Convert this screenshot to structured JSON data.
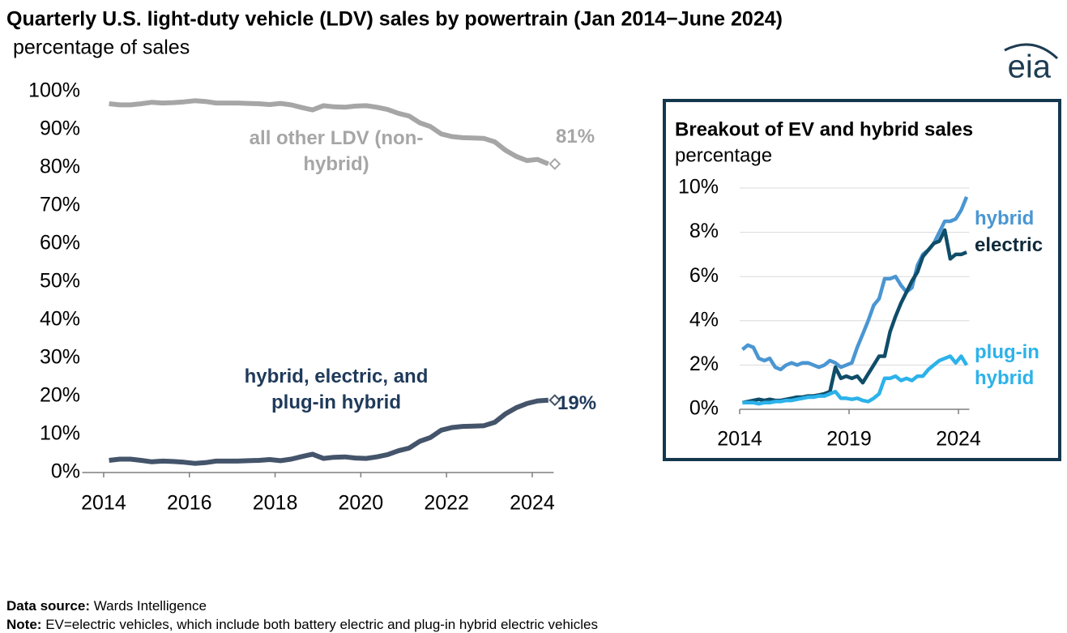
{
  "chart_data": [
    {
      "type": "line",
      "title": "Quarterly U.S. light-duty vehicle (LDV) sales by powertrain (Jan 2014−June 2024)",
      "subtitle": "percentage of sales",
      "x": [
        2014.125,
        2014.375,
        2014.625,
        2014.875,
        2015.125,
        2015.375,
        2015.625,
        2015.875,
        2016.125,
        2016.375,
        2016.625,
        2016.875,
        2017.125,
        2017.375,
        2017.625,
        2017.875,
        2018.125,
        2018.375,
        2018.625,
        2018.875,
        2019.125,
        2019.375,
        2019.625,
        2019.875,
        2020.125,
        2020.375,
        2020.625,
        2020.875,
        2021.125,
        2021.375,
        2021.625,
        2021.875,
        2022.125,
        2022.375,
        2022.625,
        2022.875,
        2023.125,
        2023.375,
        2023.625,
        2023.875,
        2024.125,
        2024.375
      ],
      "xlim": [
        2013.5,
        2024.5
      ],
      "xticks": [
        2014,
        2016,
        2018,
        2020,
        2022,
        2024
      ],
      "ylim": [
        0,
        100
      ],
      "yticks": [
        {
          "value": 0,
          "label": "0%"
        },
        {
          "value": 10,
          "label": "10%"
        },
        {
          "value": 20,
          "label": "20%"
        },
        {
          "value": 30,
          "label": "30%"
        },
        {
          "value": 40,
          "label": "40%"
        },
        {
          "value": 50,
          "label": "50%"
        },
        {
          "value": 60,
          "label": "60%"
        },
        {
          "value": 70,
          "label": "70%"
        },
        {
          "value": 80,
          "label": "80%"
        },
        {
          "value": 90,
          "label": "90%"
        },
        {
          "value": 100,
          "label": "100%"
        }
      ],
      "grid": false,
      "end_marker": "diamond",
      "series": [
        {
          "name": "all other LDV (non-hybrid)",
          "color": "#a6a6a6",
          "end_label": "81%",
          "values": [
            96.8,
            96.5,
            96.5,
            96.8,
            97.2,
            97.0,
            97.1,
            97.3,
            97.6,
            97.4,
            97.0,
            97.0,
            97.0,
            96.9,
            96.8,
            96.6,
            96.9,
            96.5,
            95.8,
            95.2,
            96.3,
            96.0,
            95.9,
            96.2,
            96.3,
            95.9,
            95.3,
            94.3,
            93.6,
            91.8,
            90.8,
            88.9,
            88.2,
            87.9,
            87.8,
            87.7,
            86.8,
            84.6,
            83.0,
            81.9,
            82.2,
            81.0
          ]
        },
        {
          "name": "hybrid, electric, and plug-in hybrid",
          "color": "#44546a",
          "end_label": "19%",
          "values": [
            3.2,
            3.5,
            3.5,
            3.2,
            2.8,
            3.0,
            2.9,
            2.7,
            2.4,
            2.6,
            3.0,
            3.0,
            3.0,
            3.1,
            3.2,
            3.4,
            3.1,
            3.5,
            4.2,
            4.8,
            3.7,
            4.0,
            4.1,
            3.8,
            3.7,
            4.1,
            4.7,
            5.7,
            6.4,
            8.2,
            9.2,
            11.1,
            11.8,
            12.1,
            12.2,
            12.3,
            13.2,
            15.4,
            17.0,
            18.1,
            18.8,
            19.0
          ]
        }
      ]
    },
    {
      "type": "line",
      "title": "Breakout of EV and hybrid sales",
      "subtitle": "percentage",
      "x": [
        2014.125,
        2014.375,
        2014.625,
        2014.875,
        2015.125,
        2015.375,
        2015.625,
        2015.875,
        2016.125,
        2016.375,
        2016.625,
        2016.875,
        2017.125,
        2017.375,
        2017.625,
        2017.875,
        2018.125,
        2018.375,
        2018.625,
        2018.875,
        2019.125,
        2019.375,
        2019.625,
        2019.875,
        2020.125,
        2020.375,
        2020.625,
        2020.875,
        2021.125,
        2021.375,
        2021.625,
        2021.875,
        2022.125,
        2022.375,
        2022.625,
        2022.875,
        2023.125,
        2023.375,
        2023.625,
        2023.875,
        2024.125,
        2024.375
      ],
      "xlim": [
        2014,
        2024.5
      ],
      "xticks": [
        2014,
        2019,
        2024
      ],
      "ylim": [
        0,
        10
      ],
      "yticks": [
        {
          "value": 0,
          "label": "0%"
        },
        {
          "value": 2,
          "label": "2%"
        },
        {
          "value": 4,
          "label": "4%"
        },
        {
          "value": 6,
          "label": "6%"
        },
        {
          "value": 8,
          "label": "8%"
        },
        {
          "value": 10,
          "label": "10%"
        }
      ],
      "grid": true,
      "series": [
        {
          "name": "hybrid",
          "color": "#4a96d2",
          "values": [
            2.7,
            2.9,
            2.8,
            2.3,
            2.2,
            2.3,
            1.9,
            1.8,
            2.0,
            2.1,
            2.0,
            2.1,
            2.1,
            2.0,
            1.9,
            2.0,
            2.2,
            2.1,
            1.9,
            2.0,
            2.1,
            2.8,
            3.4,
            4.0,
            4.7,
            5.0,
            5.9,
            5.9,
            6.0,
            5.6,
            5.3,
            5.5,
            6.5,
            7.0,
            7.2,
            7.5,
            8.0,
            8.5,
            8.5,
            8.6,
            9.0,
            9.6
          ]
        },
        {
          "name": "electric",
          "color": "#0f4d69",
          "values": [
            0.3,
            0.35,
            0.4,
            0.45,
            0.4,
            0.45,
            0.4,
            0.4,
            0.45,
            0.5,
            0.55,
            0.55,
            0.6,
            0.6,
            0.65,
            0.7,
            0.8,
            1.9,
            1.4,
            1.5,
            1.4,
            1.5,
            1.2,
            1.6,
            2.0,
            2.4,
            2.4,
            3.5,
            4.2,
            4.8,
            5.3,
            5.8,
            6.2,
            6.9,
            7.2,
            7.5,
            7.6,
            8.1,
            6.8,
            7.0,
            7.0,
            7.1
          ]
        },
        {
          "name": "plug-in hybrid",
          "color": "#2cb2ea",
          "values": [
            0.3,
            0.3,
            0.3,
            0.25,
            0.3,
            0.3,
            0.35,
            0.35,
            0.4,
            0.4,
            0.45,
            0.5,
            0.55,
            0.55,
            0.6,
            0.6,
            0.7,
            0.8,
            0.5,
            0.5,
            0.45,
            0.5,
            0.4,
            0.35,
            0.5,
            0.7,
            1.4,
            1.4,
            1.5,
            1.3,
            1.4,
            1.3,
            1.5,
            1.5,
            1.8,
            2.0,
            2.2,
            2.3,
            2.4,
            2.1,
            2.4,
            2.0
          ]
        }
      ]
    }
  ],
  "logo": "eia",
  "footnotes": [
    {
      "label": "Data source:",
      "text": "Wards Intelligence"
    },
    {
      "label": "Note:",
      "text": "EV=electric vehicles, which include both battery electric and plug-in hybrid electric vehicles"
    }
  ]
}
